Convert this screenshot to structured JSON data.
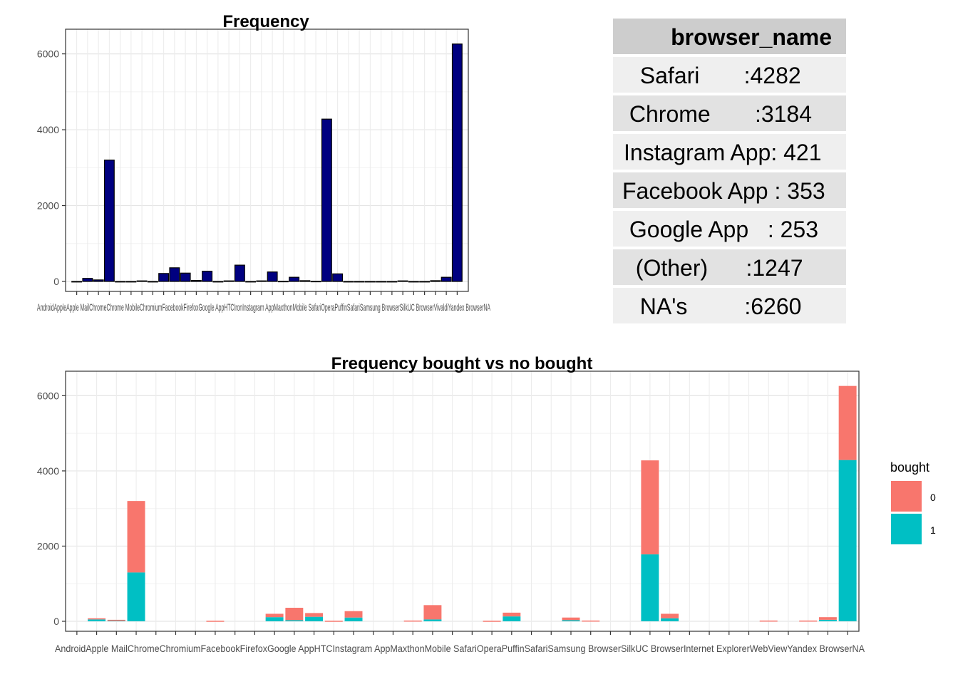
{
  "chart_data": [
    {
      "type": "bar",
      "title": "Frequency",
      "xlabel": "",
      "ylabel": "",
      "ylim": [
        0,
        6500
      ],
      "yticks": [
        0,
        2000,
        4000,
        6000
      ],
      "grid": true,
      "fill_color": "#000080",
      "categories": [
        "Android",
        "Apple",
        "Apple Mail",
        "Chrome",
        "Chrome Mobile",
        "Chromium",
        "Facebook",
        "Firefox",
        "Google App",
        "HTC",
        "Iron",
        "Instagram App",
        "Maxthon",
        "Mobile Safari",
        "Opera",
        "Puffin",
        "Safari",
        "Samsung Browser",
        "Silk",
        "UC Browser",
        "Vivaldi",
        "Yandex",
        "NA"
      ],
      "x_tick_text": "AndroidAppleApple MailChromeChrome MobileChromiumFacebookFirefoxGoogle AppHTCIronInstagram AppMaxthonMobile SafariOperaPuffinSafariSamsung BrowserSilkUC BrowserVivaldiYandex BrowserNA",
      "bar_values": [
        0,
        80,
        40,
        3200,
        0,
        0,
        15,
        0,
        210,
        360,
        220,
        25,
        270,
        0,
        15,
        430,
        0,
        15,
        250,
        5,
        110,
        20,
        5,
        4280,
        200,
        0,
        0,
        0,
        0,
        0,
        15,
        0,
        0,
        20,
        110,
        6260
      ]
    },
    {
      "type": "bar",
      "stacked": true,
      "title": "Frequency bought vs no bought",
      "xlabel": "",
      "ylabel": "",
      "ylim": [
        0,
        6500
      ],
      "yticks": [
        0,
        2000,
        4000,
        6000
      ],
      "grid": true,
      "legend": {
        "title": "bought",
        "position": "right",
        "entries": [
          {
            "label": "0",
            "color": "#F8766D"
          },
          {
            "label": "1",
            "color": "#00BFC4"
          }
        ]
      },
      "x_tick_text": "AndroidApple MailChromeChromiumFacebookFirefoxGoogle AppHTCInstagram AppMaxthonMobile SafariOperaPuffinSafariSamsung BrowserSilkUC BrowserInternet ExplorerWebViewYandex BrowserNA",
      "series": [
        {
          "name": "0",
          "color": "#F8766D",
          "values": [
            0,
            30,
            10,
            1900,
            0,
            0,
            0,
            15,
            0,
            0,
            90,
            330,
            100,
            10,
            170,
            0,
            0,
            10,
            380,
            0,
            0,
            10,
            100,
            0,
            0,
            70,
            15,
            0,
            0,
            2500,
            120,
            0,
            0,
            0,
            0,
            15,
            0,
            15,
            70,
            1970
          ]
        },
        {
          "name": "1",
          "color": "#00BFC4",
          "values": [
            0,
            50,
            30,
            1300,
            0,
            0,
            0,
            0,
            0,
            0,
            110,
            30,
            120,
            5,
            100,
            0,
            0,
            10,
            50,
            0,
            0,
            5,
            130,
            0,
            0,
            30,
            5,
            0,
            0,
            1780,
            80,
            0,
            0,
            0,
            0,
            5,
            0,
            5,
            40,
            4290
          ]
        }
      ]
    }
  ],
  "summary_table": {
    "header": "browser_name",
    "rows": [
      "  Safari       :4282",
      " Chrome       :3184",
      "Instagram App: 421",
      "Facebook App : 353",
      " Google App   : 253",
      "  (Other)      :1247",
      "  NA's         :6260"
    ]
  }
}
